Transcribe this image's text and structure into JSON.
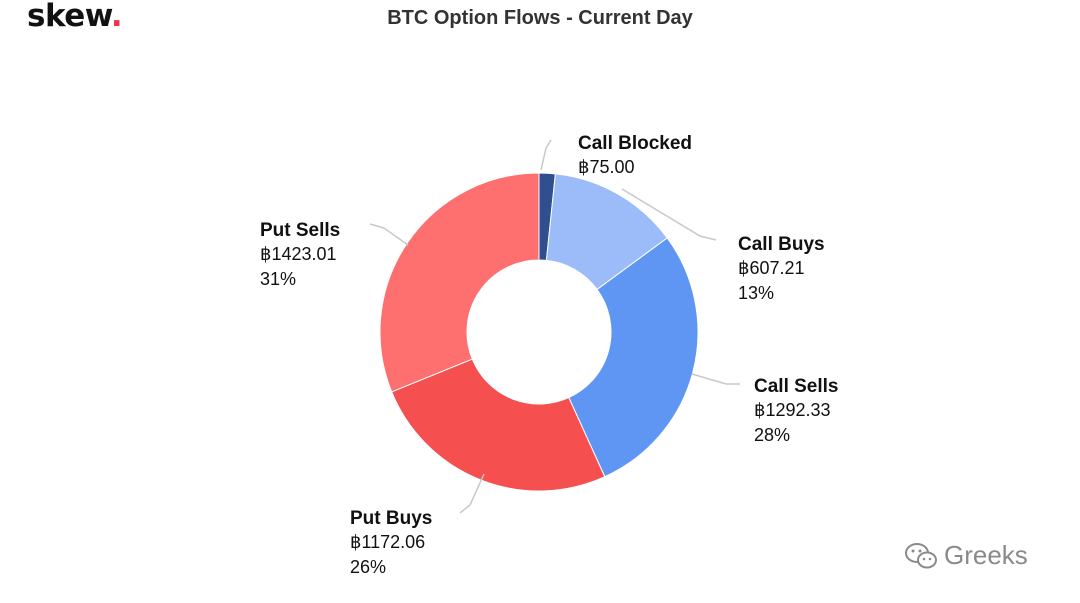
{
  "brand": {
    "name": "skew",
    "dot": "."
  },
  "watermark": {
    "text": "Greeks",
    "icon": "wechat-icon"
  },
  "chart_data": {
    "type": "pie",
    "donut": true,
    "title": "BTC Option Flows - Current Day",
    "currency_symbol": "฿",
    "slices": [
      {
        "label": "Call Blocked",
        "value": 75.0,
        "value_text": "฿75.00",
        "percent_text": "2%",
        "color": "#2f4f8f"
      },
      {
        "label": "Call Buys",
        "value": 607.21,
        "value_text": "฿607.21",
        "percent_text": "13%",
        "color": "#9bbcf9"
      },
      {
        "label": "Call Sells",
        "value": 1292.33,
        "value_text": "฿1292.33",
        "percent_text": "28%",
        "color": "#6096f3"
      },
      {
        "label": "Put Buys",
        "value": 1172.06,
        "value_text": "฿1172.06",
        "percent_text": "26%",
        "color": "#f64f4f"
      },
      {
        "label": "Put Sells",
        "value": 1423.01,
        "value_text": "฿1423.01",
        "percent_text": "31%",
        "color": "#fe7070"
      }
    ],
    "legend": "none"
  }
}
